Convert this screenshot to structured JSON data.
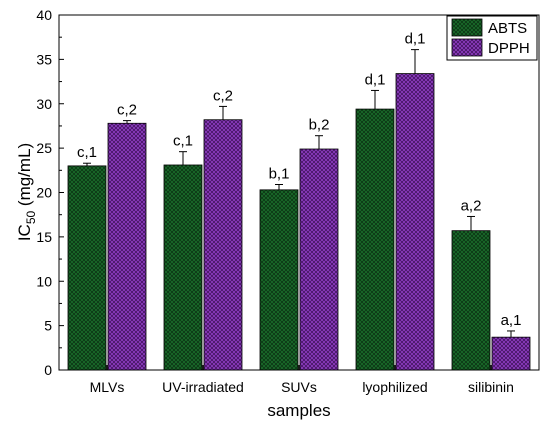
{
  "chart_data": {
    "type": "bar",
    "xlabel": "samples",
    "ylabel_main": "IC",
    "ylabel_sub": "50",
    "ylabel_tail": " (mg/mL)",
    "ylim": [
      0,
      40
    ],
    "yticks": [
      "0",
      "5",
      "10",
      "15",
      "20",
      "25",
      "30",
      "35",
      "40"
    ],
    "categories": [
      "MLVs",
      "UV-irradiated",
      "SUVs",
      "lyophilized",
      "silibinin"
    ],
    "legend_position": "top-right",
    "series": [
      {
        "name": "ABTS",
        "color": "#1a6b2a",
        "pattern": "crosshatch",
        "values": [
          23.0,
          23.1,
          20.3,
          29.4,
          15.7
        ],
        "errors": [
          0.3,
          1.5,
          0.6,
          2.1,
          1.6
        ],
        "labels": [
          "c,1",
          "c,1",
          "b,1",
          "d,1",
          "a,2"
        ]
      },
      {
        "name": "DPPH",
        "color": "#7b2aa8",
        "pattern": "crosshatch",
        "values": [
          27.8,
          28.2,
          24.9,
          33.4,
          3.7
        ],
        "errors": [
          0.3,
          1.5,
          1.5,
          2.7,
          0.7
        ],
        "labels": [
          "c,2",
          "c,2",
          "b,2",
          "d,1",
          "a,1"
        ]
      }
    ]
  }
}
